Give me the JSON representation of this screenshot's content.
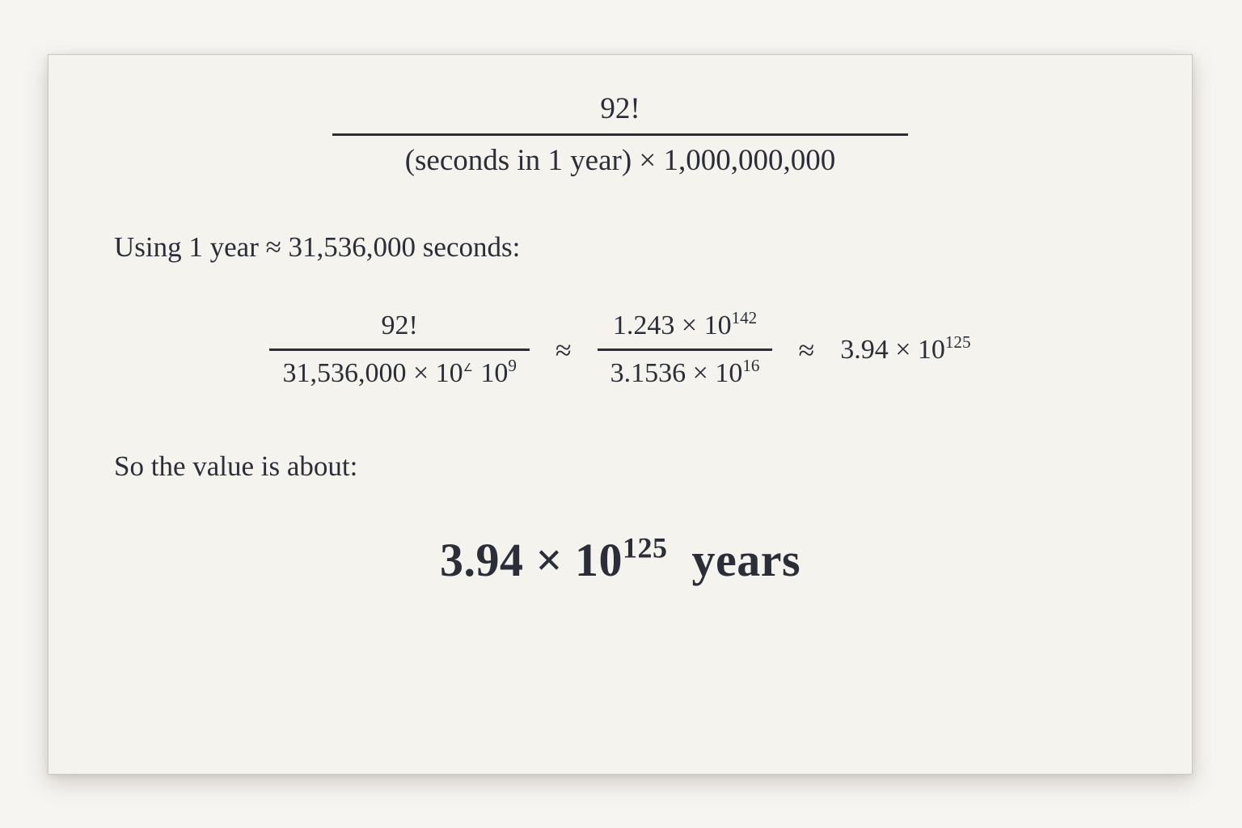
{
  "page": {
    "background": "#f7f5f1",
    "card_background": "#f5f3ee",
    "ink_color": "#2b2e38"
  },
  "formula_top": {
    "numerator": "92!",
    "denominator": "(seconds in 1 year) × 1,000,000,000"
  },
  "using_line": "Using 1 year ≈ 31,536,000 seconds:",
  "equation": {
    "frac_left": {
      "numerator": "92!",
      "den_base": "31,536,000 × 10",
      "den_glitch_sup": "∠",
      "den_base2": "10",
      "den_sup2": "9"
    },
    "approx1": "≈",
    "frac_right": {
      "num_base": "1.243 × 10",
      "num_sup": "142",
      "den_base": "3.1536 × 10",
      "den_sup": "16"
    },
    "approx2": "≈",
    "result_base": "3.94 × 10",
    "result_sup": "125"
  },
  "so_line": "So the value is about:",
  "final_result": {
    "base": "3.94 × 10",
    "sup": "125",
    "unit": "years"
  }
}
